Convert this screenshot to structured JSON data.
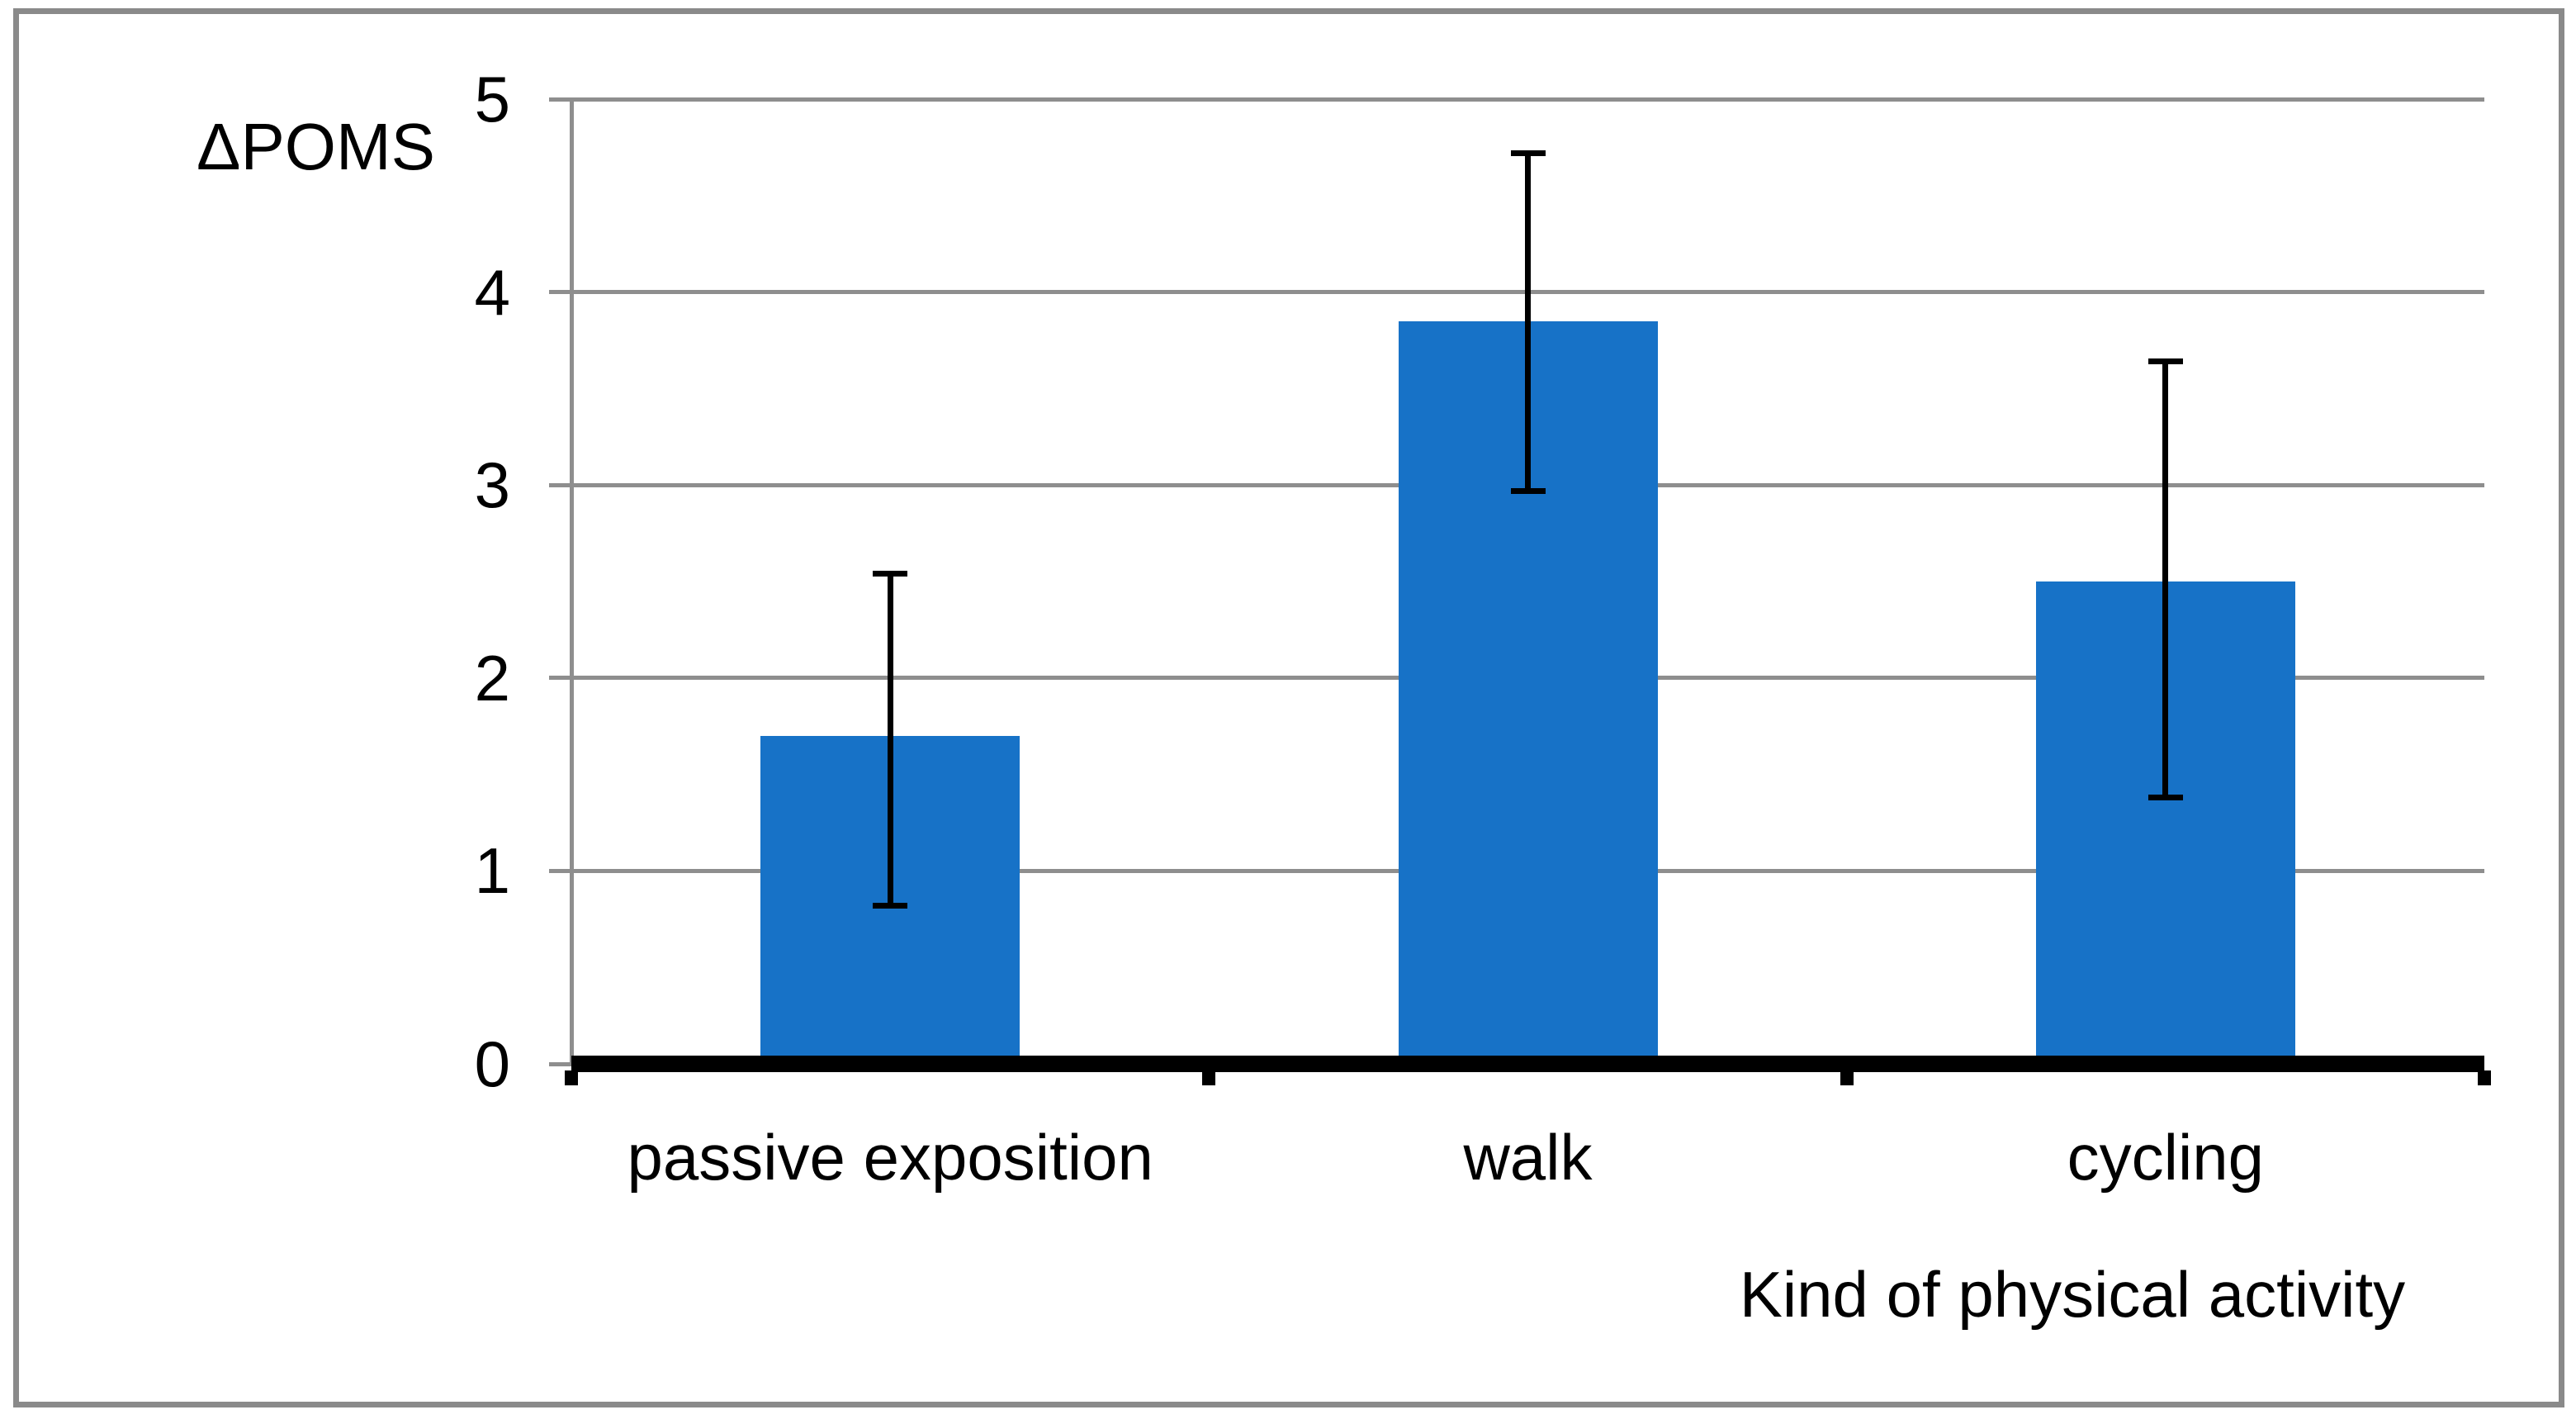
{
  "chart_data": {
    "type": "bar",
    "title": "",
    "ylabel": "ΔPOMS",
    "xlabel": "Kind of physical activity",
    "categories": [
      "passive exposition",
      "walk",
      "cycling"
    ],
    "values": [
      1.7,
      3.85,
      2.5
    ],
    "error_bars": [
      {
        "low": 0.82,
        "high": 2.54
      },
      {
        "low": 2.97,
        "high": 4.72
      },
      {
        "low": 1.38,
        "high": 3.64
      }
    ],
    "yticks": [
      0,
      1,
      2,
      3,
      4,
      5
    ],
    "ylim": [
      0,
      5
    ],
    "grid": true,
    "legend": "none",
    "bar_color": "#1772c7",
    "grid_color": "#8e8e8e",
    "axis_color": "#000000",
    "frame_color": "#8a8a8a",
    "background_color": "#ffffff"
  }
}
